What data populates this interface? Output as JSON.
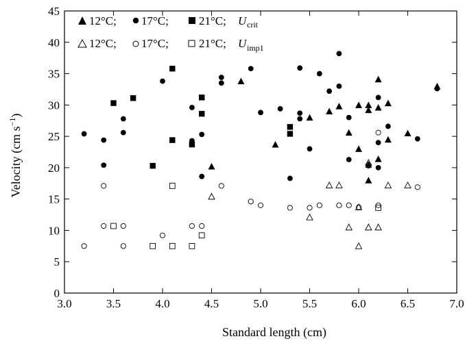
{
  "chart_data": {
    "type": "scatter",
    "title": "",
    "xlabel": "Standard length (cm)",
    "ylabel": "Velocity (cm s−1)",
    "ylabel_main": "Velocity (cm s",
    "ylabel_sup": "−1",
    "ylabel_end": ")",
    "xlim": [
      3.0,
      7.0
    ],
    "ylim": [
      0,
      45
    ],
    "x_ticks": [
      "3.0",
      "3.5",
      "4.0",
      "4.5",
      "5.0",
      "5.5",
      "6.0",
      "6.5",
      "7.0"
    ],
    "y_ticks": [
      "0",
      "5",
      "10",
      "15",
      "20",
      "25",
      "30",
      "35",
      "40",
      "45"
    ],
    "legend_position": "top-left",
    "legend": {
      "row1": {
        "t12": "12°C;",
        "t17": "17°C;",
        "t21": "21°C;",
        "u_main": "U",
        "u_sub": "crit"
      },
      "row2": {
        "t12": "12°C;",
        "t17": "17°C;",
        "t21": "21°C;",
        "u_main": "U",
        "u_sub": "imp1"
      }
    },
    "series": [
      {
        "marker": "filled-triangle",
        "points": [
          [
            4.5,
            20.2
          ],
          [
            4.8,
            33.8
          ],
          [
            5.15,
            23.7
          ],
          [
            5.5,
            28.0
          ],
          [
            5.7,
            29.0
          ],
          [
            5.8,
            29.8
          ],
          [
            5.9,
            25.6
          ],
          [
            6.0,
            23.0
          ],
          [
            6.0,
            30.0
          ],
          [
            6.1,
            30.0
          ],
          [
            6.1,
            29.2
          ],
          [
            6.1,
            20.5
          ],
          [
            6.1,
            18.0
          ],
          [
            6.2,
            34.1
          ],
          [
            6.2,
            29.6
          ],
          [
            6.2,
            21.4
          ],
          [
            6.3,
            30.3
          ],
          [
            6.3,
            24.5
          ],
          [
            6.5,
            25.5
          ],
          [
            6.8,
            33.0
          ]
        ]
      },
      {
        "marker": "filled-circle",
        "points": [
          [
            3.2,
            25.4
          ],
          [
            3.4,
            24.4
          ],
          [
            3.4,
            20.4
          ],
          [
            3.6,
            27.8
          ],
          [
            3.6,
            25.6
          ],
          [
            4.0,
            33.8
          ],
          [
            4.3,
            29.6
          ],
          [
            4.3,
            24.3
          ],
          [
            4.4,
            25.3
          ],
          [
            4.4,
            18.6
          ],
          [
            4.6,
            34.4
          ],
          [
            4.6,
            33.5
          ],
          [
            4.9,
            35.8
          ],
          [
            5.0,
            28.8
          ],
          [
            5.2,
            29.4
          ],
          [
            5.3,
            18.3
          ],
          [
            5.4,
            35.9
          ],
          [
            5.4,
            28.7
          ],
          [
            5.4,
            27.8
          ],
          [
            5.5,
            23.0
          ],
          [
            5.6,
            35.0
          ],
          [
            5.7,
            32.2
          ],
          [
            5.8,
            38.2
          ],
          [
            5.8,
            33.0
          ],
          [
            5.9,
            28.0
          ],
          [
            5.9,
            21.3
          ],
          [
            6.1,
            20.3
          ],
          [
            6.2,
            31.2
          ],
          [
            6.2,
            24.0
          ],
          [
            6.2,
            20.0
          ],
          [
            6.3,
            26.6
          ],
          [
            6.6,
            24.6
          ],
          [
            6.8,
            32.6
          ]
        ]
      },
      {
        "marker": "filled-square",
        "points": [
          [
            3.5,
            30.3
          ],
          [
            3.7,
            31.1
          ],
          [
            3.9,
            20.3
          ],
          [
            4.1,
            35.8
          ],
          [
            4.1,
            24.4
          ],
          [
            4.3,
            23.7
          ],
          [
            4.4,
            31.2
          ],
          [
            4.4,
            28.6
          ],
          [
            5.3,
            26.5
          ],
          [
            5.3,
            25.4
          ]
        ]
      },
      {
        "marker": "open-triangle",
        "points": [
          [
            4.5,
            15.4
          ],
          [
            5.5,
            12.1
          ],
          [
            5.7,
            17.2
          ],
          [
            5.8,
            17.2
          ],
          [
            5.9,
            10.5
          ],
          [
            6.0,
            13.7
          ],
          [
            6.0,
            7.5
          ],
          [
            6.1,
            20.8
          ],
          [
            6.1,
            10.5
          ],
          [
            6.2,
            10.5
          ],
          [
            6.3,
            17.2
          ],
          [
            6.5,
            17.2
          ]
        ]
      },
      {
        "marker": "open-circle",
        "points": [
          [
            3.2,
            7.5
          ],
          [
            3.4,
            17.1
          ],
          [
            3.4,
            10.7
          ],
          [
            3.6,
            10.7
          ],
          [
            3.6,
            7.5
          ],
          [
            4.0,
            9.2
          ],
          [
            4.3,
            10.7
          ],
          [
            4.4,
            10.7
          ],
          [
            4.6,
            17.1
          ],
          [
            4.9,
            14.6
          ],
          [
            5.0,
            14.0
          ],
          [
            5.3,
            13.6
          ],
          [
            5.5,
            13.6
          ],
          [
            5.6,
            14.0
          ],
          [
            5.8,
            14.0
          ],
          [
            5.9,
            14.0
          ],
          [
            6.0,
            13.7
          ],
          [
            6.1,
            20.5
          ],
          [
            6.2,
            25.6
          ],
          [
            6.2,
            14.0
          ],
          [
            6.6,
            16.9
          ]
        ]
      },
      {
        "marker": "open-square",
        "points": [
          [
            3.5,
            10.7
          ],
          [
            3.9,
            7.5
          ],
          [
            4.1,
            17.1
          ],
          [
            4.1,
            7.5
          ],
          [
            4.3,
            7.5
          ],
          [
            4.4,
            9.2
          ],
          [
            6.2,
            13.6
          ]
        ]
      }
    ]
  }
}
